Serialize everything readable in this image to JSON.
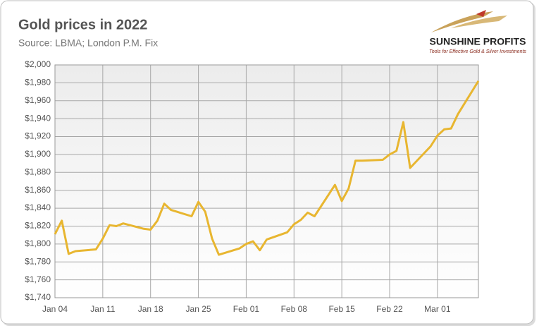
{
  "chart_data": {
    "type": "line",
    "title": "Gold prices in 2022",
    "subtitle": "Source: LBMA; London P.M. Fix",
    "logo": {
      "name": "SUNSHINE PROFITS",
      "tagline": "Tools for Effective Gold & Silver Investments"
    },
    "x": [
      "Jan 04",
      "Jan 05",
      "Jan 06",
      "Jan 07",
      "Jan 10",
      "Jan 11",
      "Jan 12",
      "Jan 13",
      "Jan 14",
      "Jan 17",
      "Jan 18",
      "Jan 19",
      "Jan 20",
      "Jan 21",
      "Jan 24",
      "Jan 25",
      "Jan 26",
      "Jan 27",
      "Jan 28",
      "Jan 31",
      "Feb 01",
      "Feb 02",
      "Feb 03",
      "Feb 04",
      "Feb 07",
      "Feb 08",
      "Feb 09",
      "Feb 10",
      "Feb 11",
      "Feb 14",
      "Feb 15",
      "Feb 16",
      "Feb 17",
      "Feb 18",
      "Feb 21",
      "Feb 22",
      "Feb 23",
      "Feb 24",
      "Feb 25",
      "Feb 28",
      "Mar 01",
      "Mar 02",
      "Mar 03",
      "Mar 04",
      "Mar 07"
    ],
    "series": [
      {
        "color": "#e8b630",
        "values": [
          1811,
          1826,
          1789,
          1792,
          1794,
          1806,
          1821,
          1820,
          1823,
          1817,
          1816,
          1826,
          1845,
          1838,
          1831,
          1847,
          1836,
          1806,
          1788,
          1795,
          1800,
          1803,
          1793,
          1805,
          1813,
          1822,
          1827,
          1835,
          1831,
          1866,
          1848,
          1862,
          1893,
          1893,
          1894,
          1900,
          1904,
          1936,
          1885,
          1909,
          1921,
          1928,
          1929,
          1945,
          1982
        ]
      }
    ],
    "xlim": [
      "Jan 04",
      "Mar 07"
    ],
    "xticks": [
      "Jan 04",
      "Jan 11",
      "Jan 18",
      "Jan 25",
      "Feb 01",
      "Feb 08",
      "Feb 15",
      "Feb 22",
      "Mar 01"
    ],
    "ylim": [
      1740,
      2000
    ],
    "yticks": [
      {
        "value": 1740,
        "label": "$1,740"
      },
      {
        "value": 1760,
        "label": "$1,760"
      },
      {
        "value": 1780,
        "label": "$1,780"
      },
      {
        "value": 1800,
        "label": "$1,800"
      },
      {
        "value": 1820,
        "label": "$1,820"
      },
      {
        "value": 1840,
        "label": "$1,840"
      },
      {
        "value": 1860,
        "label": "$1,860"
      },
      {
        "value": 1880,
        "label": "$1,880"
      },
      {
        "value": 1900,
        "label": "$1,900"
      },
      {
        "value": 1920,
        "label": "$1,920"
      },
      {
        "value": 1940,
        "label": "$1,940"
      },
      {
        "value": 1960,
        "label": "$1,960"
      },
      {
        "value": 1980,
        "label": "$1,980"
      },
      {
        "value": 2000,
        "label": "$2,000"
      }
    ],
    "grid": true
  }
}
